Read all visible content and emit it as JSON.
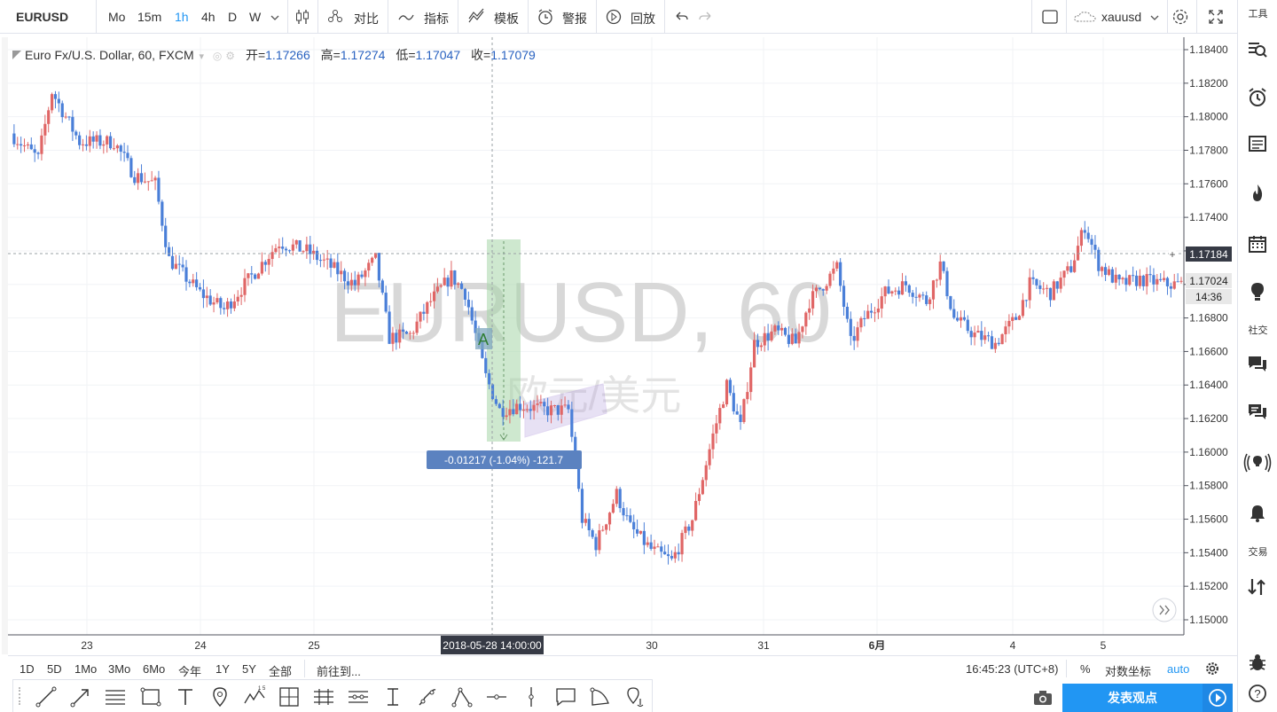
{
  "toolbar": {
    "symbol": "EURUSD",
    "intervals": [
      "Mo",
      "15m",
      "1h",
      "4h",
      "D",
      "W"
    ],
    "active_interval": "1h",
    "compare_label": "对比",
    "indicators_label": "指标",
    "templates_label": "模板",
    "alert_label": "警报",
    "replay_label": "回放",
    "cloud_name": "xauusd"
  },
  "sidebar": {
    "tools_label": "工具",
    "social_label": "社交",
    "trade_label": "交易"
  },
  "legend": {
    "title": "Euro Fx/U.S. Dollar, 60, FXCM",
    "open_label": "开=",
    "open": "1.17266",
    "high_label": "高=",
    "high": "1.17274",
    "low_label": "低=",
    "low": "1.17047",
    "close_label": "收=",
    "close": "1.17079"
  },
  "watermark": {
    "symbol": "EURUSD, 60",
    "desc": "欧元/美元"
  },
  "chart_data": {
    "type": "candlestick",
    "y_axis_labels": [
      "1.18400",
      "1.18200",
      "1.18000",
      "1.17800",
      "1.17600",
      "1.17400",
      "1.17200",
      "1.17000",
      "1.16800",
      "1.16600",
      "1.16400",
      "1.16200",
      "1.16000",
      "1.15800",
      "1.15600",
      "1.15400",
      "1.15200",
      "1.15000"
    ],
    "ylim": [
      1.149,
      1.185
    ],
    "x_axis_labels": [
      "23",
      "24",
      "25",
      "2018-05-28 14:00:00",
      "30",
      "31",
      "6月",
      "4",
      "5"
    ],
    "crosshair_price": "1.17184",
    "last_price": "1.17024",
    "countdown": "14:36",
    "measure_label": "-0.01217 (-1.04%) -121.7",
    "pattern_label": "A",
    "up_color": "#e06666",
    "down_color": "#4a7fd8"
  },
  "bottom": {
    "ranges": [
      "1D",
      "5D",
      "1Mo",
      "3Mo",
      "6Mo",
      "今年",
      "1Y",
      "5Y",
      "全部"
    ],
    "goto": "前往到...",
    "time": "16:45:23 (UTC+8)",
    "percent": "%",
    "log": "对数坐标",
    "auto": "auto",
    "publish": "发表观点"
  }
}
